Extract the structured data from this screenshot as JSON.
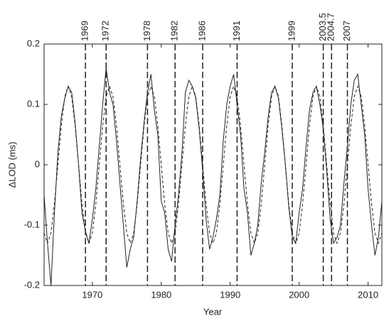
{
  "chart_data": {
    "type": "line",
    "xlabel": "Year",
    "ylabel": "ΔLOD (ms)",
    "xlim": [
      1963,
      2012
    ],
    "xticks": [
      1970,
      1980,
      1990,
      2000,
      2010
    ],
    "ylim": [
      -0.2,
      0.2
    ],
    "yticks": [
      -0.2,
      -0.1,
      0,
      0.1,
      0.2
    ],
    "vlines": [
      1969,
      1972,
      1978,
      1982,
      1986,
      1991,
      1999,
      2003.5,
      2004.7,
      2007
    ],
    "x": [
      1963,
      1963.5,
      1964,
      1964.5,
      1965,
      1965.5,
      1966,
      1966.5,
      1967,
      1967.5,
      1968,
      1968.5,
      1969,
      1969.5,
      1970,
      1970.5,
      1971,
      1971.5,
      1972,
      1972.5,
      1973,
      1973.5,
      1974,
      1974.5,
      1975,
      1975.5,
      1976,
      1976.5,
      1977,
      1977.5,
      1978,
      1978.5,
      1979,
      1979.5,
      1980,
      1980.5,
      1981,
      1981.5,
      1982,
      1982.5,
      1983,
      1983.5,
      1984,
      1984.5,
      1985,
      1985.5,
      1986,
      1986.5,
      1987,
      1987.5,
      1988,
      1988.5,
      1989,
      1989.5,
      1990,
      1990.5,
      1991,
      1991.5,
      1992,
      1992.5,
      1993,
      1993.5,
      1994,
      1994.5,
      1995,
      1995.5,
      1996,
      1996.5,
      1997,
      1997.5,
      1998,
      1998.5,
      1999,
      1999.5,
      2000,
      2000.5,
      2001,
      2001.5,
      2002,
      2002.5,
      2003,
      2003.5,
      2004,
      2004.5,
      2005,
      2005.5,
      2006,
      2006.5,
      2007,
      2007.5,
      2008,
      2008.5,
      2009,
      2009.5,
      2010,
      2010.5,
      2011,
      2011.5,
      2012
    ],
    "series": [
      {
        "color": "#222222",
        "dash": "none",
        "values": [
          -0.05,
          -0.13,
          -0.2,
          -0.08,
          0.02,
          0.08,
          0.11,
          0.13,
          0.12,
          0.07,
          0.0,
          -0.08,
          -0.11,
          -0.13,
          -0.09,
          -0.04,
          0.03,
          0.1,
          0.16,
          0.12,
          0.1,
          0.04,
          -0.03,
          -0.1,
          -0.17,
          -0.14,
          -0.12,
          -0.06,
          0.01,
          0.07,
          0.12,
          0.15,
          0.09,
          0.05,
          -0.06,
          -0.08,
          -0.14,
          -0.16,
          -0.1,
          -0.05,
          0.02,
          0.12,
          0.14,
          0.13,
          0.11,
          0.06,
          -0.01,
          -0.09,
          -0.14,
          -0.12,
          -0.09,
          -0.05,
          0.04,
          0.1,
          0.13,
          0.15,
          0.1,
          0.05,
          -0.04,
          -0.08,
          -0.15,
          -0.13,
          -0.1,
          -0.03,
          0.02,
          0.08,
          0.12,
          0.13,
          0.11,
          0.06,
          0.0,
          -0.07,
          -0.12,
          -0.13,
          -0.08,
          -0.04,
          0.03,
          0.09,
          0.12,
          0.13,
          0.1,
          0.06,
          -0.01,
          -0.09,
          -0.13,
          -0.12,
          -0.1,
          -0.03,
          0.03,
          0.1,
          0.14,
          0.15,
          0.1,
          0.05,
          -0.04,
          -0.1,
          -0.15,
          -0.12,
          -0.06
        ]
      },
      {
        "color": "#222222",
        "dash": "4 3",
        "values": [
          -0.113,
          -0.13,
          -0.113,
          -0.065,
          0,
          0.065,
          0.113,
          0.13,
          0.113,
          0.065,
          0,
          -0.065,
          -0.113,
          -0.13,
          -0.113,
          -0.065,
          0,
          0.065,
          0.113,
          0.13,
          0.113,
          0.065,
          0,
          -0.065,
          -0.113,
          -0.13,
          -0.113,
          -0.065,
          0,
          0.065,
          0.113,
          0.13,
          0.113,
          0.065,
          0,
          -0.065,
          -0.113,
          -0.13,
          -0.113,
          -0.065,
          0,
          0.065,
          0.113,
          0.13,
          0.113,
          0.065,
          0,
          -0.065,
          -0.113,
          -0.13,
          -0.113,
          -0.065,
          0,
          0.065,
          0.113,
          0.13,
          0.113,
          0.065,
          0,
          -0.065,
          -0.113,
          -0.13,
          -0.113,
          -0.065,
          0,
          0.065,
          0.113,
          0.13,
          0.113,
          0.065,
          0,
          -0.065,
          -0.113,
          -0.13,
          -0.113,
          -0.065,
          0,
          0.065,
          0.113,
          0.13,
          0.113,
          0.065,
          0,
          -0.065,
          -0.113,
          -0.13,
          -0.113,
          -0.065,
          0,
          0.065,
          0.113,
          0.13,
          0.113,
          0.065,
          0,
          -0.065,
          -0.113,
          -0.13,
          -0.113
        ]
      }
    ]
  }
}
